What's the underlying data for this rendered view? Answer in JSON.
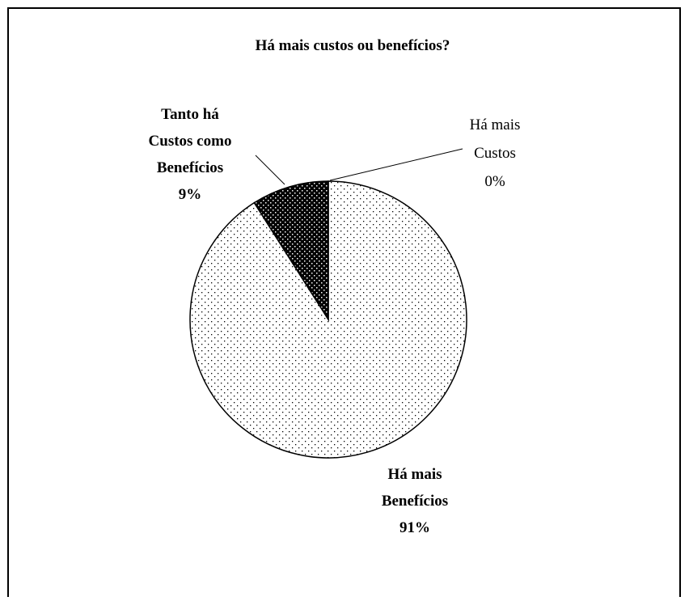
{
  "chart_data": {
    "type": "pie",
    "title": "Há mais custos ou benefícios?",
    "categories": [
      "Há mais Custos",
      "Há mais Benefícios",
      "Tanto há Custos como Benefícios"
    ],
    "values": [
      0,
      91,
      9
    ],
    "value_labels": [
      "0%",
      "91%",
      "9%"
    ],
    "colors": [
      "#ffffff",
      "#ffffff",
      "#000000"
    ],
    "start_angle": 90,
    "direction": "clockwise"
  }
}
